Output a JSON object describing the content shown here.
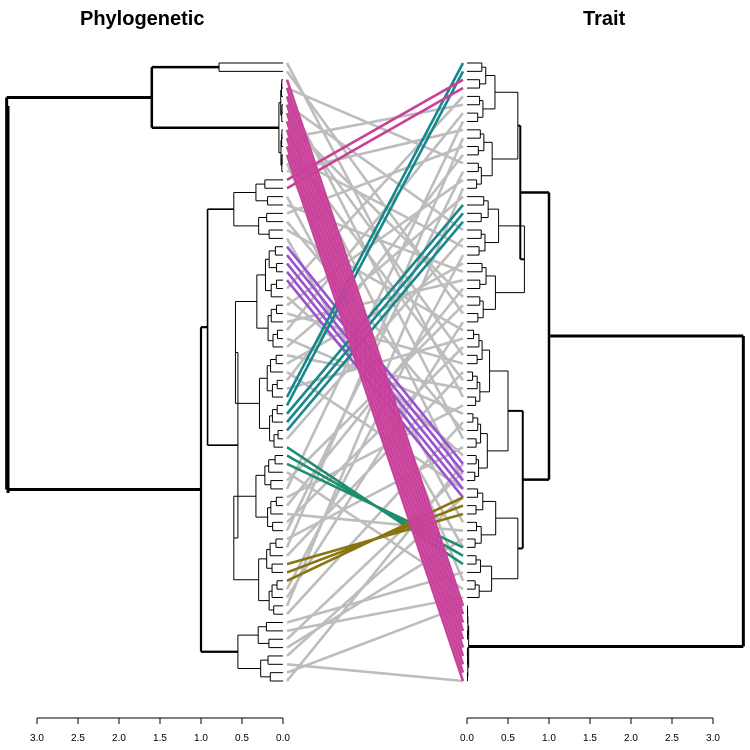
{
  "titles": {
    "left": "Phylogenetic",
    "right": "Trait"
  },
  "left_axis": {
    "ticks": [
      "3.0",
      "2.5",
      "2.0",
      "1.5",
      "1.0",
      "0.5",
      "0.0"
    ]
  },
  "right_axis": {
    "ticks": [
      "0.0",
      "0.5",
      "1.0",
      "1.5",
      "2.0",
      "2.5",
      "3.0"
    ]
  },
  "colors": {
    "tree": "#000000",
    "gray": "#bdbdbd",
    "magenta": "#c8409a",
    "purple": "#9b4fd1",
    "teal": "#16878a",
    "green": "#1e8c6e",
    "olive": "#8a7410"
  },
  "tanglegram": {
    "leaf_count": 75,
    "magenta_lines": {
      "left_start": 2,
      "right_start": 65,
      "count": 10
    },
    "magenta_top_lines": {
      "left": [
        14,
        15
      ],
      "right": [
        2,
        3
      ]
    },
    "purple_lines": {
      "left_start": 22,
      "right_start": 48,
      "count": 5
    },
    "teal_lines": [
      [
        40,
        0
      ],
      [
        41,
        1
      ],
      [
        42,
        17
      ],
      [
        43,
        18
      ],
      [
        44,
        19
      ]
    ],
    "green_lines": [
      [
        46,
        60
      ],
      [
        47,
        59
      ],
      [
        48,
        58
      ]
    ],
    "olive_lines": [
      [
        60,
        54
      ],
      [
        61,
        53
      ],
      [
        62,
        52
      ]
    ],
    "gray_lines": [
      [
        0,
        40
      ],
      [
        1,
        30
      ],
      [
        3,
        12
      ],
      [
        4,
        45
      ],
      [
        5,
        20
      ],
      [
        6,
        35
      ],
      [
        7,
        28
      ],
      [
        8,
        50
      ],
      [
        9,
        5
      ],
      [
        10,
        38
      ],
      [
        11,
        22
      ],
      [
        12,
        62
      ],
      [
        13,
        8
      ],
      [
        16,
        55
      ],
      [
        17,
        25
      ],
      [
        18,
        10
      ],
      [
        19,
        44
      ],
      [
        20,
        32
      ],
      [
        21,
        58
      ],
      [
        27,
        4
      ],
      [
        28,
        47
      ],
      [
        29,
        14
      ],
      [
        30,
        36
      ],
      [
        31,
        26
      ],
      [
        32,
        6
      ],
      [
        33,
        42
      ],
      [
        34,
        16
      ],
      [
        35,
        39
      ],
      [
        36,
        24
      ],
      [
        37,
        51
      ],
      [
        38,
        11
      ],
      [
        39,
        33
      ],
      [
        45,
        21
      ],
      [
        49,
        63
      ],
      [
        50,
        29
      ],
      [
        51,
        7
      ],
      [
        52,
        41
      ],
      [
        53,
        27
      ],
      [
        54,
        56
      ],
      [
        55,
        34
      ],
      [
        56,
        13
      ],
      [
        57,
        46
      ],
      [
        58,
        9
      ],
      [
        59,
        37
      ],
      [
        63,
        23
      ],
      [
        64,
        31
      ],
      [
        65,
        15
      ],
      [
        66,
        43
      ],
      [
        67,
        61
      ],
      [
        68,
        64
      ],
      [
        69,
        49
      ],
      [
        70,
        57
      ],
      [
        71,
        52
      ],
      [
        72,
        74
      ],
      [
        73,
        65
      ],
      [
        74,
        48
      ]
    ]
  }
}
